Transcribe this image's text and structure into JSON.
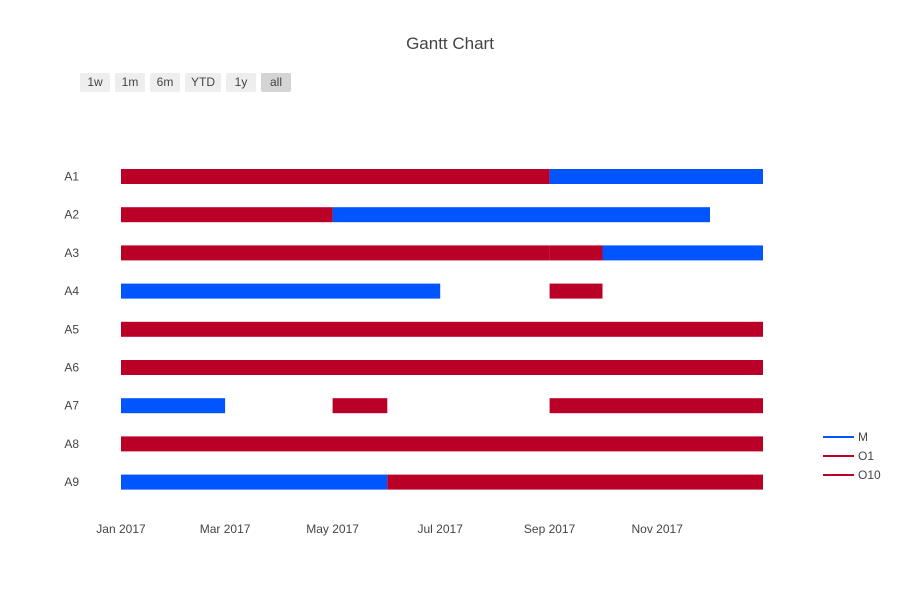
{
  "chart_data": {
    "type": "gantt",
    "title": "Gantt Chart",
    "xlabel": "",
    "ylabel": "",
    "range_selector": {
      "buttons": [
        "1w",
        "1m",
        "6m",
        "YTD",
        "1y",
        "all"
      ],
      "active": "all"
    },
    "x_range": [
      "2017-01-01",
      "2017-12-31"
    ],
    "x_ticks": [
      {
        "date": "2017-01-01",
        "label": "Jan 2017"
      },
      {
        "date": "2017-03-01",
        "label": "Mar 2017"
      },
      {
        "date": "2017-05-01",
        "label": "May 2017"
      },
      {
        "date": "2017-07-01",
        "label": "Jul 2017"
      },
      {
        "date": "2017-09-01",
        "label": "Sep 2017"
      },
      {
        "date": "2017-11-01",
        "label": "Nov 2017"
      }
    ],
    "tasks": [
      "A1",
      "A2",
      "A3",
      "A4",
      "A5",
      "A6",
      "A7",
      "A8",
      "A9"
    ],
    "series": [
      {
        "name": "M",
        "color": "#0055ff"
      },
      {
        "name": "O1",
        "color": "#bb0028"
      },
      {
        "name": "O10",
        "color": "#bb0028"
      }
    ],
    "bars": [
      {
        "task": "A1",
        "series": "O1",
        "start": "2017-01-01",
        "end": "2017-09-01"
      },
      {
        "task": "A1",
        "series": "M",
        "start": "2017-09-01",
        "end": "2017-12-31"
      },
      {
        "task": "A2",
        "series": "O1",
        "start": "2017-01-01",
        "end": "2017-05-01"
      },
      {
        "task": "A2",
        "series": "M",
        "start": "2017-05-01",
        "end": "2017-12-01"
      },
      {
        "task": "A3",
        "series": "O1",
        "start": "2017-01-01",
        "end": "2017-09-01"
      },
      {
        "task": "A3",
        "series": "O10",
        "start": "2017-09-01",
        "end": "2017-10-01"
      },
      {
        "task": "A3",
        "series": "M",
        "start": "2017-10-01",
        "end": "2017-12-31"
      },
      {
        "task": "A4",
        "series": "M",
        "start": "2017-01-01",
        "end": "2017-07-01"
      },
      {
        "task": "A4",
        "series": "O1",
        "start": "2017-09-01",
        "end": "2017-10-01"
      },
      {
        "task": "A5",
        "series": "O1",
        "start": "2017-01-01",
        "end": "2017-12-31"
      },
      {
        "task": "A6",
        "series": "O1",
        "start": "2017-01-01",
        "end": "2017-12-31"
      },
      {
        "task": "A7",
        "series": "M",
        "start": "2017-01-01",
        "end": "2017-03-01"
      },
      {
        "task": "A7",
        "series": "O1",
        "start": "2017-05-01",
        "end": "2017-06-01"
      },
      {
        "task": "A7",
        "series": "O1",
        "start": "2017-09-01",
        "end": "2017-12-31"
      },
      {
        "task": "A8",
        "series": "O1",
        "start": "2017-01-01",
        "end": "2017-12-31"
      },
      {
        "task": "A9",
        "series": "M",
        "start": "2017-01-01",
        "end": "2017-06-01"
      },
      {
        "task": "A9",
        "series": "O1",
        "start": "2017-06-01",
        "end": "2017-12-31"
      }
    ],
    "legend": {
      "position": "right",
      "entries": [
        "M",
        "O1",
        "O10"
      ]
    },
    "grid": false
  }
}
